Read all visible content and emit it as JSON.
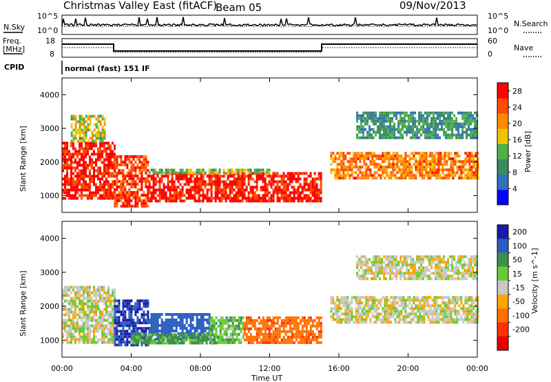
{
  "header": {
    "station": "Christmas Valley East (fitACF)",
    "beam": "Beam 05",
    "date": "09/Nov/2013"
  },
  "summary_panels": {
    "nsky_label": "N.Sky",
    "nsearch_label": "N.Search",
    "freq_label_line1": "Freq.",
    "freq_label_line2": "[MHz]",
    "nave_label": "Nave",
    "cpid_label": "CPID",
    "cpid_value": "normal (fast) 151 IF",
    "noise_ticks": [
      "10^5",
      "10^0"
    ],
    "freq_ticks": [
      "18",
      "8"
    ],
    "nave_ticks": [
      "60",
      "0"
    ]
  },
  "colors": {
    "power_scale": [
      "#0000ff",
      "#2e6fbe",
      "#3a8a5f",
      "#4db04a",
      "#f2c500",
      "#ff8c00",
      "#ff4a00",
      "#ff0000"
    ],
    "velocity_scale": [
      "#1a1aa8",
      "#2b5fbf",
      "#3e8f4e",
      "#66cc33",
      "#c8c8c8",
      "#ffa500",
      "#ff7000",
      "#ff3000",
      "#e60000"
    ]
  },
  "chart_data": [
    {
      "type": "heatmap",
      "panel": "power",
      "title": "",
      "xlabel": "",
      "ylabel": "Slant Range [km]",
      "xlim": [
        "00:00",
        "00:00"
      ],
      "ylim": [
        500,
        4500
      ],
      "y_ticks": [
        "1000",
        "2000",
        "3000",
        "4000"
      ],
      "colorbar": {
        "label": "Power [dB]",
        "ticks": [
          "28",
          "24",
          "20",
          "16",
          "12",
          "8",
          "4"
        ],
        "range": [
          0,
          30
        ]
      },
      "regions": [
        {
          "t_start": 0.0,
          "t_end": 3.0,
          "range_low": 900,
          "range_high": 2600,
          "power": 28
        },
        {
          "t_start": 0.5,
          "t_end": 2.5,
          "range_low": 2600,
          "range_high": 3400,
          "power": 16
        },
        {
          "t_start": 3.0,
          "t_end": 5.0,
          "range_low": 700,
          "range_high": 2200,
          "power": 26
        },
        {
          "t_start": 5.0,
          "t_end": 15.0,
          "range_low": 800,
          "range_high": 1700,
          "power": 28
        },
        {
          "t_start": 5.0,
          "t_end": 12.0,
          "range_low": 1700,
          "range_high": 1800,
          "power": 14
        },
        {
          "t_start": 15.5,
          "t_end": 24.0,
          "range_low": 1500,
          "range_high": 2300,
          "power": 22
        },
        {
          "t_start": 17.0,
          "t_end": 24.0,
          "range_low": 2700,
          "range_high": 3500,
          "power": 10
        }
      ]
    },
    {
      "type": "heatmap",
      "panel": "velocity",
      "title": "",
      "xlabel": "Time UT",
      "ylabel": "Slant Range [km]",
      "xlim": [
        "00:00",
        "00:00"
      ],
      "ylim": [
        500,
        4500
      ],
      "x_ticks": [
        "00:00",
        "04:00",
        "08:00",
        "12:00",
        "16:00",
        "20:00",
        "00:00"
      ],
      "y_ticks": [
        "1000",
        "2000",
        "3000",
        "4000"
      ],
      "colorbar": {
        "label": "Velocity [m s^-1]",
        "ticks": [
          "200",
          "100",
          "50",
          "15",
          "-15",
          "-50",
          "-100",
          "-200"
        ],
        "range": [
          -250,
          250
        ]
      },
      "regions": [
        {
          "t_start": 0.0,
          "t_end": 3.0,
          "range_low": 900,
          "range_high": 2600,
          "velocity": 0
        },
        {
          "t_start": 3.0,
          "t_end": 5.0,
          "range_low": 900,
          "range_high": 2200,
          "velocity": 200
        },
        {
          "t_start": 5.0,
          "t_end": 8.5,
          "range_low": 1000,
          "range_high": 1800,
          "velocity": 150
        },
        {
          "t_start": 4.0,
          "t_end": 9.0,
          "range_low": 900,
          "range_high": 1200,
          "velocity": 60
        },
        {
          "t_start": 8.5,
          "t_end": 10.5,
          "range_low": 900,
          "range_high": 1700,
          "velocity": 40
        },
        {
          "t_start": 10.5,
          "t_end": 15.0,
          "range_low": 900,
          "range_high": 1700,
          "velocity": -80
        },
        {
          "t_start": 15.5,
          "t_end": 24.0,
          "range_low": 1500,
          "range_high": 2300,
          "velocity": 0
        },
        {
          "t_start": 17.0,
          "t_end": 24.0,
          "range_low": 2800,
          "range_high": 3500,
          "velocity": 0
        }
      ]
    }
  ]
}
